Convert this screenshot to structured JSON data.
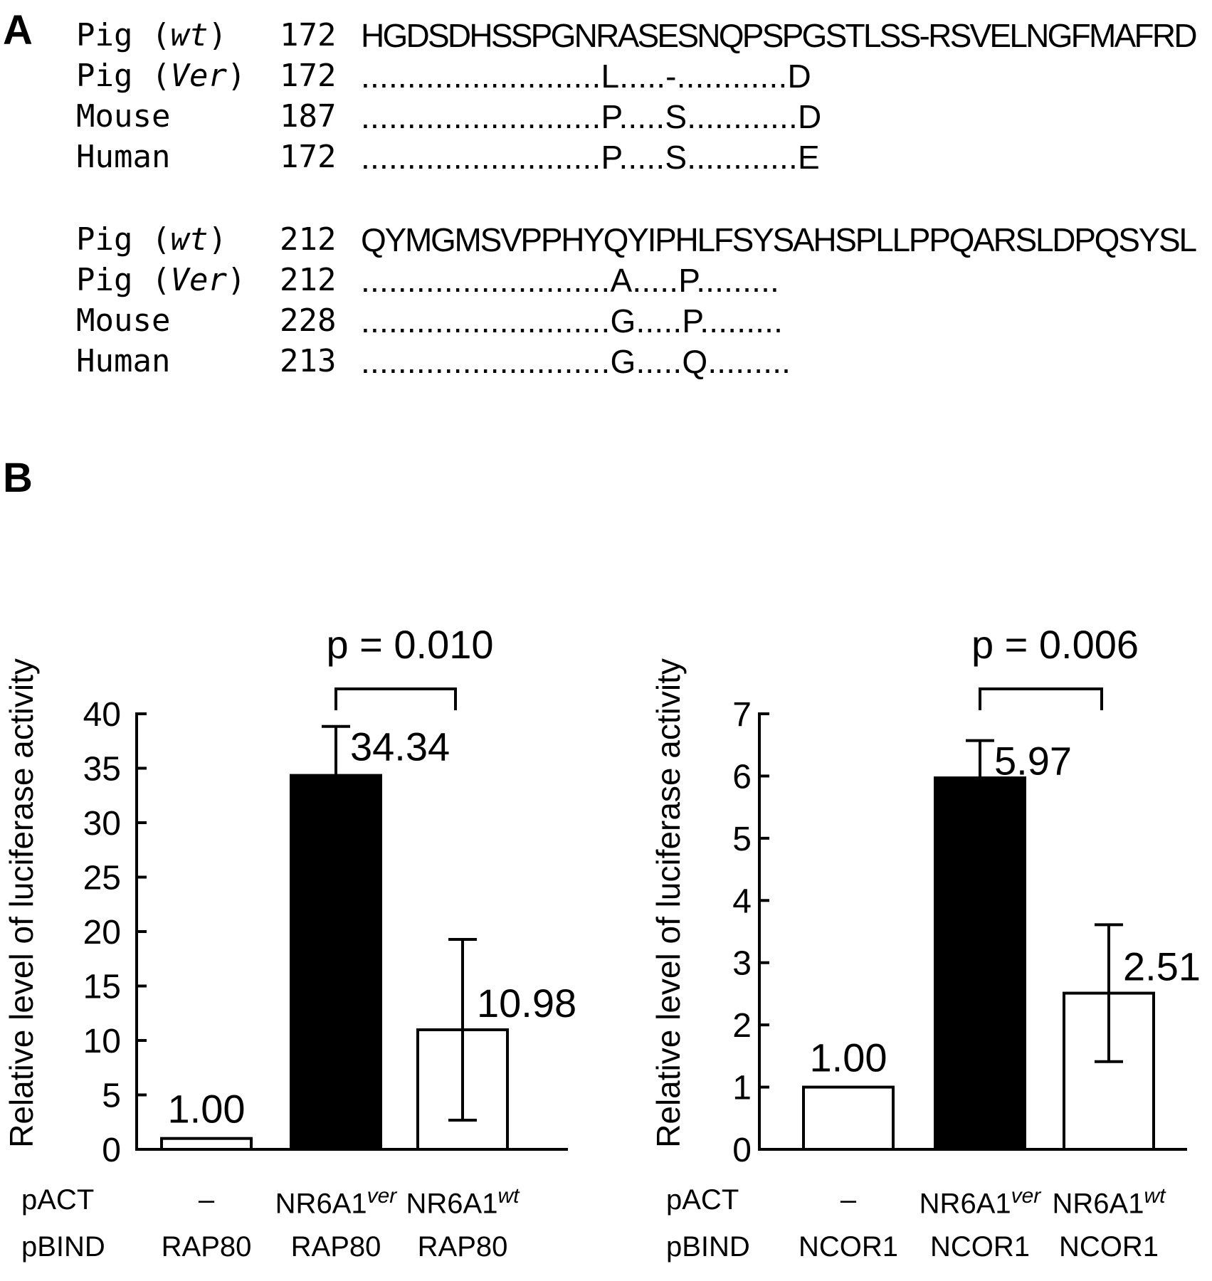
{
  "panel_labels": {
    "a": "A",
    "b": "B"
  },
  "alignment": {
    "blocks": [
      {
        "rows": [
          {
            "species": "Pig",
            "tag": "wt",
            "start": "172",
            "seq": "HGDSDHSSPGNRASESNQPSPGSTLSS-RSVELNGFMAFRD"
          },
          {
            "species": "Pig",
            "tag": "Ver",
            "start": "172",
            "seq": "..........................L.....-............D"
          },
          {
            "species": "Mouse",
            "tag": "",
            "start": "187",
            "seq": "..........................P.....S............D"
          },
          {
            "species": "Human",
            "tag": "",
            "start": "172",
            "seq": "..........................P.....S............E"
          }
        ]
      },
      {
        "rows": [
          {
            "species": "Pig",
            "tag": "wt",
            "start": "212",
            "seq": "QYMGMSVPPHYQYIPHLFSYSAHSPLLPPQARSLDPQSYSL"
          },
          {
            "species": "Pig",
            "tag": "Ver",
            "start": "212",
            "seq": "...........................A.....P........."
          },
          {
            "species": "Mouse",
            "tag": "",
            "start": "228",
            "seq": "...........................G.....P........."
          },
          {
            "species": "Human",
            "tag": "",
            "start": "213",
            "seq": "...........................G.....Q........."
          }
        ]
      }
    ]
  },
  "colors": {
    "filled": "#000000",
    "open": "#ffffff",
    "stroke": "#000000"
  },
  "chart_data": [
    {
      "type": "bar",
      "ylabel": "Relative level of luciferase activity",
      "ylim": [
        0,
        40
      ],
      "yticks": [
        "0",
        "5",
        "10",
        "15",
        "20",
        "25",
        "30",
        "35",
        "40"
      ],
      "categories": [
        "RAP80",
        "RAP80",
        "RAP80"
      ],
      "values": [
        1.0,
        34.34,
        10.98
      ],
      "value_labels": [
        "1.00",
        "34.34",
        "10.98"
      ],
      "errors": [
        0,
        4.5,
        8.3
      ],
      "fills": [
        "open",
        "filled",
        "open"
      ],
      "pvalue": {
        "text": "p = 0.010",
        "between": [
          1,
          2
        ]
      },
      "rows": [
        {
          "label": "pACT",
          "cells": [
            "–",
            "NR6A1",
            "NR6A1"
          ],
          "sups": [
            "",
            "ver",
            "wt"
          ]
        },
        {
          "label": "pBIND",
          "cells": [
            "RAP80",
            "RAP80",
            "RAP80"
          ],
          "sups": [
            "",
            "",
            ""
          ]
        }
      ]
    },
    {
      "type": "bar",
      "ylabel": "Relative level of luciferase activity",
      "ylim": [
        0,
        7
      ],
      "yticks": [
        "0",
        "1",
        "2",
        "3",
        "4",
        "5",
        "6",
        "7"
      ],
      "categories": [
        "NCOR1",
        "NCOR1",
        "NCOR1"
      ],
      "values": [
        1.0,
        5.97,
        2.51
      ],
      "value_labels": [
        "1.00",
        "5.97",
        "2.51"
      ],
      "errors": [
        0,
        0.6,
        1.1
      ],
      "fills": [
        "open",
        "filled",
        "open"
      ],
      "pvalue": {
        "text": "p = 0.006",
        "between": [
          1,
          2
        ]
      },
      "rows": [
        {
          "label": "pACT",
          "cells": [
            "–",
            "NR6A1",
            "NR6A1"
          ],
          "sups": [
            "",
            "ver",
            "wt"
          ]
        },
        {
          "label": "pBIND",
          "cells": [
            "NCOR1",
            "NCOR1",
            "NCOR1"
          ],
          "sups": [
            "",
            "",
            ""
          ]
        }
      ]
    }
  ]
}
